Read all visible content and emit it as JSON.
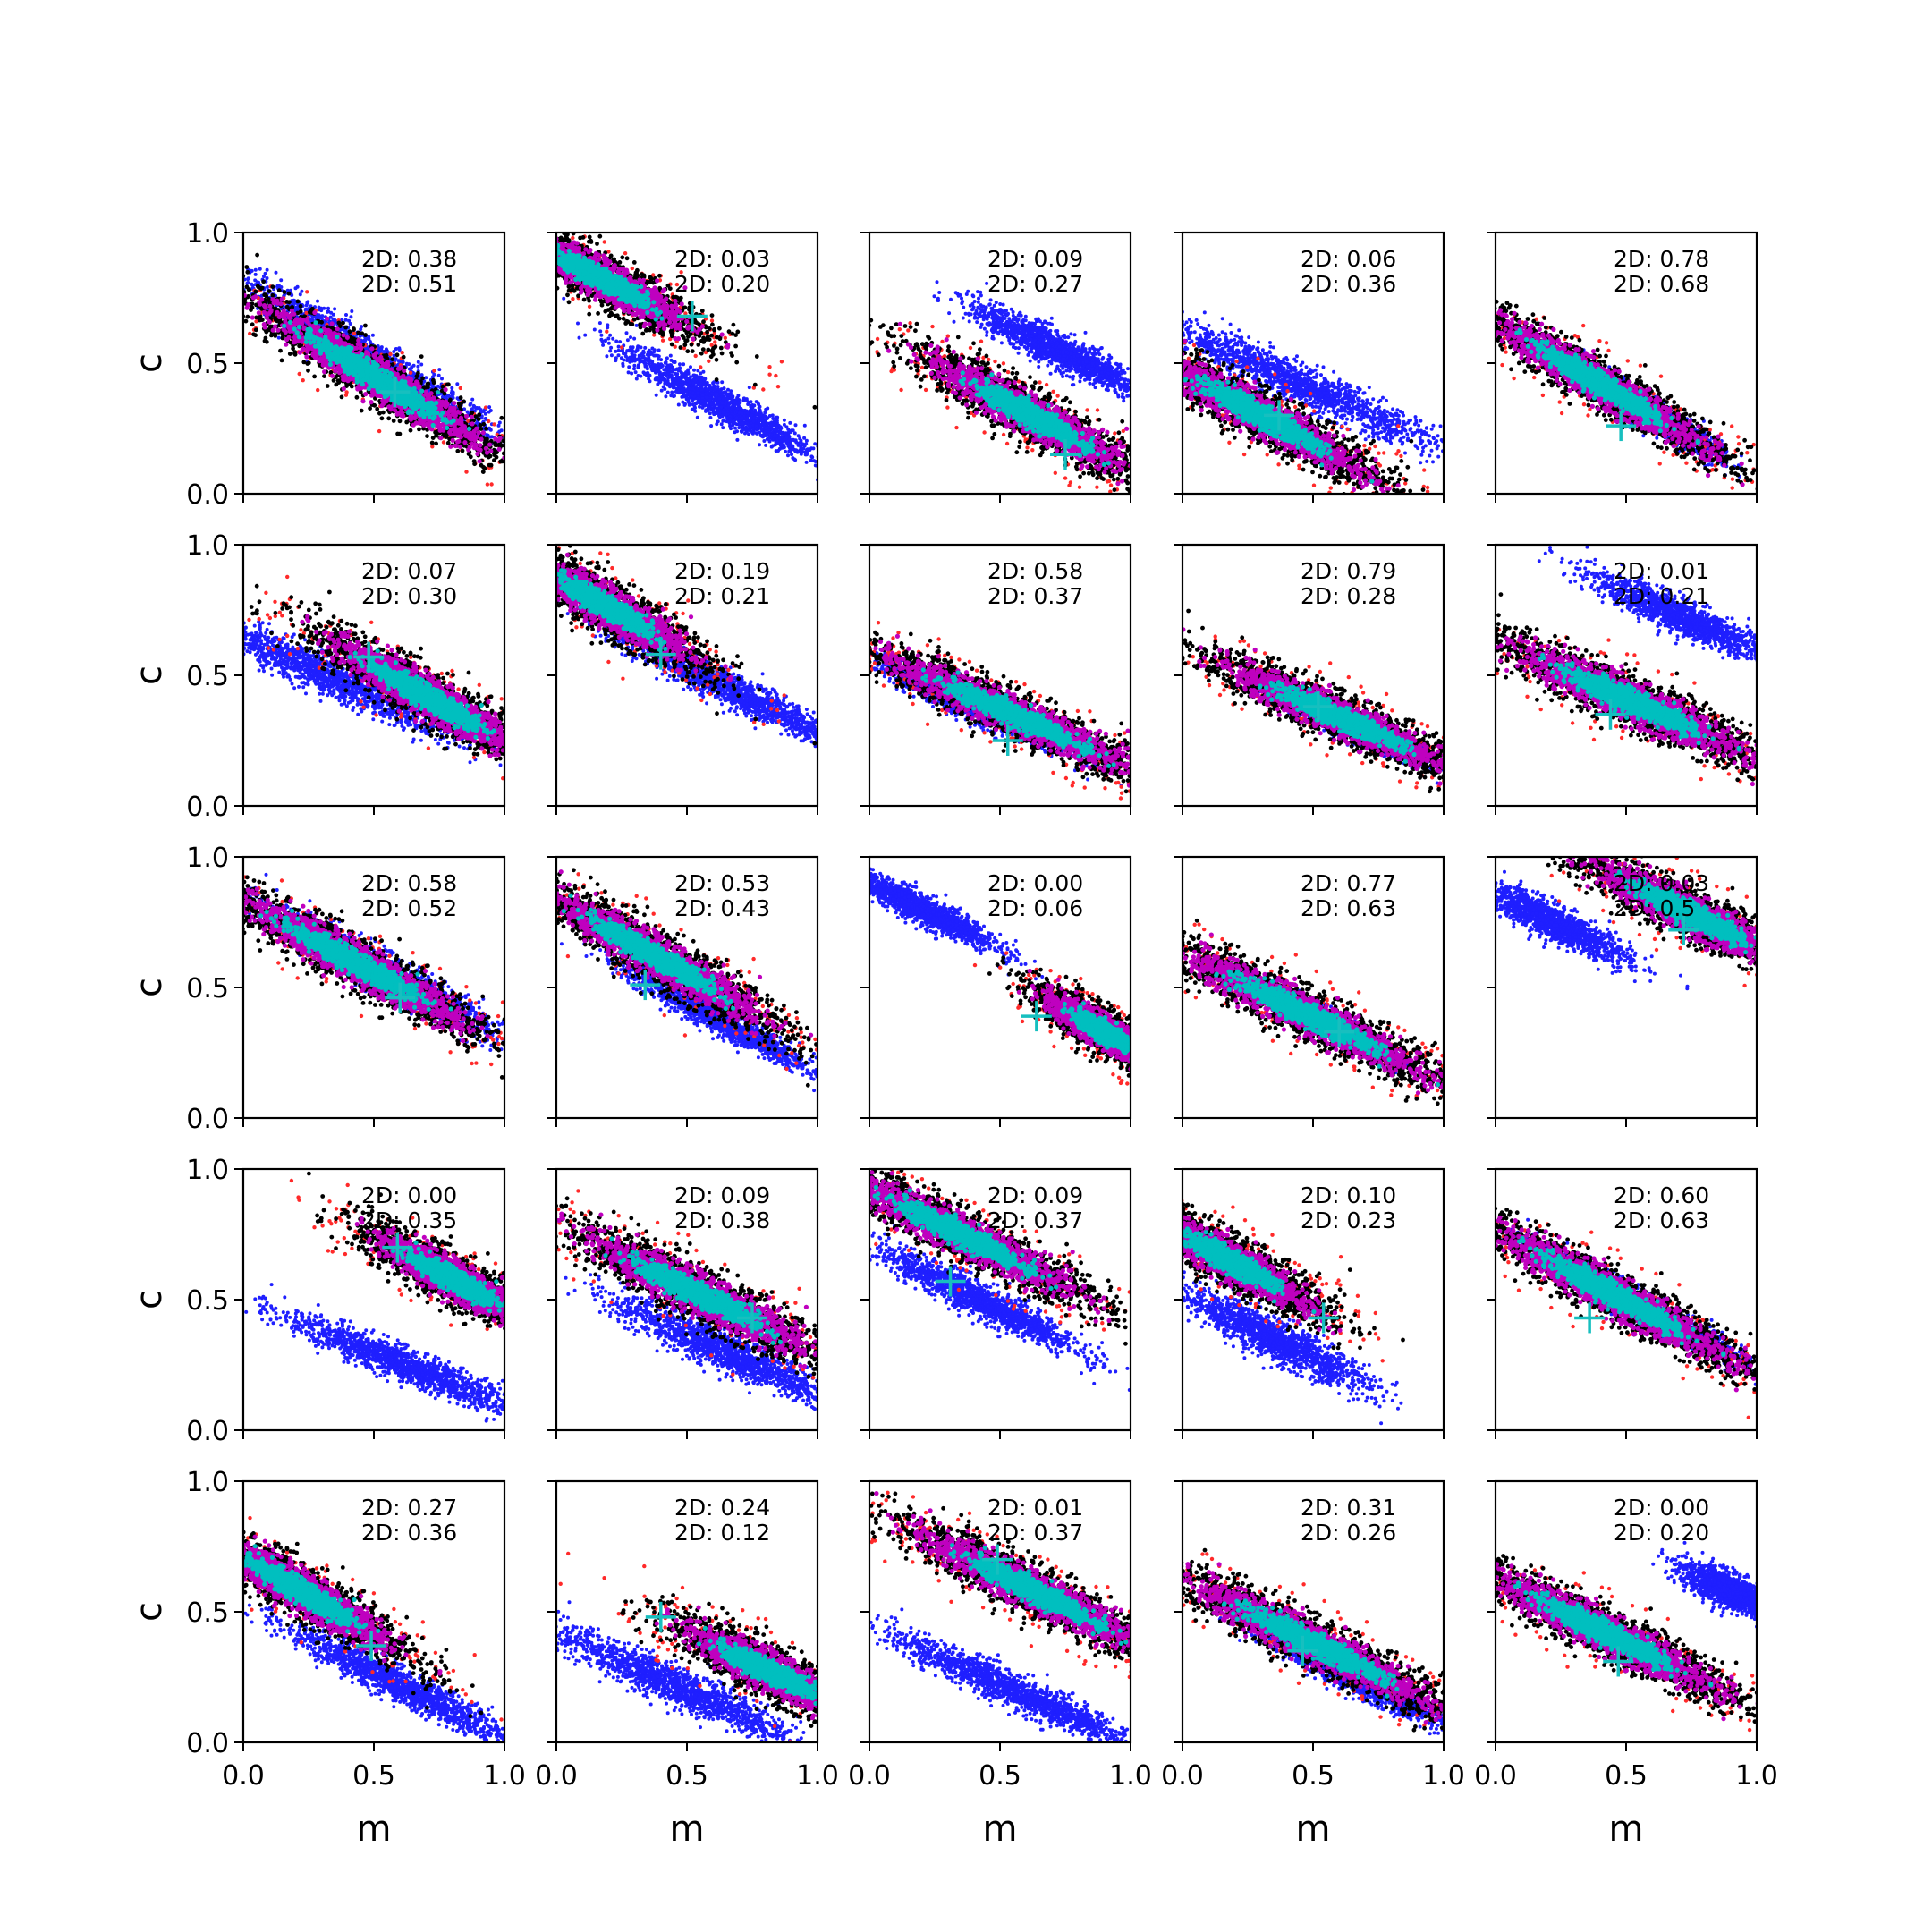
{
  "chart_data": {
    "type": "scatter",
    "grid": {
      "rows": 5,
      "cols": 5
    },
    "xlabel": "m",
    "ylabel": "c",
    "xlim": [
      0.0,
      1.0
    ],
    "ylim": [
      0.0,
      1.0
    ],
    "x_ticks": [
      "0.0",
      "0.5",
      "1.0"
    ],
    "y_ticks": [
      "0.0",
      "0.5",
      "1.0"
    ],
    "grid_lines": false,
    "colors": {
      "blue": "#1f1fff",
      "red": "#ff2a2a",
      "black": "#000000",
      "magenta": "#bf00bf",
      "cyan": "#00bfbf",
      "marker": "#17bfbf"
    },
    "series_legend": "none",
    "panels": [
      {
        "a1": "2D: 0.38",
        "a2": "2D: 0.51",
        "blue": {
          "cx": 0.47,
          "cy": 0.53,
          "slope": -0.62,
          "len": 0.62,
          "wid": 0.07
        },
        "main": {
          "cx": 0.5,
          "cy": 0.45,
          "slope": -0.62,
          "len": 0.6,
          "wid": 0.085
        },
        "marker": [
          0.58,
          0.39
        ]
      },
      {
        "a1": "2D: 0.03",
        "a2": "2D: 0.20",
        "blue": {
          "cx": 0.62,
          "cy": 0.35,
          "slope": -0.55,
          "len": 0.42,
          "wid": 0.06
        },
        "main": {
          "cx": 0.18,
          "cy": 0.82,
          "slope": -0.55,
          "len": 0.42,
          "wid": 0.08
        },
        "marker": [
          0.52,
          0.68
        ]
      },
      {
        "a1": "2D: 0.09",
        "a2": "2D: 0.27",
        "blue": {
          "cx": 0.72,
          "cy": 0.55,
          "slope": -0.5,
          "len": 0.36,
          "wid": 0.06
        },
        "main": {
          "cx": 0.62,
          "cy": 0.3,
          "slope": -0.55,
          "len": 0.5,
          "wid": 0.085
        },
        "marker": [
          0.75,
          0.15
        ]
      },
      {
        "a1": "2D: 0.06",
        "a2": "2D: 0.36",
        "blue": {
          "cx": 0.45,
          "cy": 0.42,
          "slope": -0.45,
          "len": 0.6,
          "wid": 0.07
        },
        "main": {
          "cx": 0.3,
          "cy": 0.3,
          "slope": -0.55,
          "len": 0.55,
          "wid": 0.085
        },
        "marker": [
          0.37,
          0.3
        ]
      },
      {
        "a1": "2D: 0.78",
        "a2": "2D: 0.68",
        "blue": {
          "cx": 0.6,
          "cy": 0.3,
          "slope": -0.6,
          "len": 0.3,
          "wid": 0.05
        },
        "main": {
          "cx": 0.4,
          "cy": 0.42,
          "slope": -0.6,
          "len": 0.58,
          "wid": 0.08
        },
        "marker": [
          0.48,
          0.26
        ]
      },
      {
        "a1": "2D: 0.07",
        "a2": "2D: 0.30",
        "blue": {
          "cx": 0.32,
          "cy": 0.5,
          "slope": -0.45,
          "len": 0.55,
          "wid": 0.07
        },
        "main": {
          "cx": 0.7,
          "cy": 0.42,
          "slope": -0.58,
          "len": 0.5,
          "wid": 0.085
        },
        "marker": [
          0.48,
          0.57
        ]
      },
      {
        "a1": "2D: 0.19",
        "a2": "2D: 0.21",
        "blue": {
          "cx": 0.66,
          "cy": 0.45,
          "slope": -0.5,
          "len": 0.5,
          "wid": 0.06
        },
        "main": {
          "cx": 0.2,
          "cy": 0.76,
          "slope": -0.6,
          "len": 0.42,
          "wid": 0.085
        },
        "marker": [
          0.4,
          0.58
        ]
      },
      {
        "a1": "2D: 0.58",
        "a2": "2D: 0.37",
        "blue": {
          "cx": 0.4,
          "cy": 0.38,
          "slope": -0.45,
          "len": 0.4,
          "wid": 0.05
        },
        "main": {
          "cx": 0.55,
          "cy": 0.35,
          "slope": -0.45,
          "len": 0.62,
          "wid": 0.08
        },
        "marker": [
          0.53,
          0.25
        ]
      },
      {
        "a1": "2D: 0.79",
        "a2": "2D: 0.28",
        "blue": {
          "cx": 0.65,
          "cy": 0.3,
          "slope": -0.45,
          "len": 0.3,
          "wid": 0.04
        },
        "main": {
          "cx": 0.6,
          "cy": 0.34,
          "slope": -0.45,
          "len": 0.56,
          "wid": 0.08
        },
        "marker": [
          0.52,
          0.38
        ]
      },
      {
        "a1": "2D: 0.01",
        "a2": "2D: 0.21",
        "blue": {
          "cx": 0.72,
          "cy": 0.72,
          "slope": -0.45,
          "len": 0.38,
          "wid": 0.06
        },
        "main": {
          "cx": 0.52,
          "cy": 0.4,
          "slope": -0.45,
          "len": 0.6,
          "wid": 0.09
        },
        "marker": [
          0.44,
          0.35
        ]
      },
      {
        "a1": "2D: 0.58",
        "a2": "2D: 0.52",
        "blue": {
          "cx": 0.55,
          "cy": 0.55,
          "slope": -0.55,
          "len": 0.5,
          "wid": 0.07
        },
        "main": {
          "cx": 0.42,
          "cy": 0.6,
          "slope": -0.55,
          "len": 0.6,
          "wid": 0.085
        },
        "marker": [
          0.6,
          0.46
        ]
      },
      {
        "a1": "2D: 0.53",
        "a2": "2D: 0.43",
        "blue": {
          "cx": 0.62,
          "cy": 0.38,
          "slope": -0.55,
          "len": 0.4,
          "wid": 0.05
        },
        "main": {
          "cx": 0.38,
          "cy": 0.62,
          "slope": -0.58,
          "len": 0.56,
          "wid": 0.085
        },
        "marker": [
          0.34,
          0.51
        ]
      },
      {
        "a1": "2D: 0.00",
        "a2": "2D: 0.06",
        "blue": {
          "cx": 0.2,
          "cy": 0.8,
          "slope": -0.5,
          "len": 0.32,
          "wid": 0.05
        },
        "main": {
          "cx": 0.9,
          "cy": 0.33,
          "slope": -0.6,
          "len": 0.3,
          "wid": 0.07
        },
        "marker": [
          0.64,
          0.39
        ]
      },
      {
        "a1": "2D: 0.77",
        "a2": "2D: 0.63",
        "blue": {
          "cx": 0.5,
          "cy": 0.4,
          "slope": -0.5,
          "len": 0.3,
          "wid": 0.04
        },
        "main": {
          "cx": 0.47,
          "cy": 0.4,
          "slope": -0.5,
          "len": 0.64,
          "wid": 0.085
        },
        "marker": [
          0.6,
          0.33
        ]
      },
      {
        "a1": "2D: 0.03",
        "a2": "2D: 0.5",
        "blue": {
          "cx": 0.22,
          "cy": 0.75,
          "slope": -0.5,
          "len": 0.32,
          "wid": 0.06
        },
        "main": {
          "cx": 0.75,
          "cy": 0.78,
          "slope": -0.5,
          "len": 0.5,
          "wid": 0.085
        },
        "marker": [
          0.72,
          0.72
        ]
      },
      {
        "a1": "2D: 0.00",
        "a2": "2D: 0.35",
        "blue": {
          "cx": 0.62,
          "cy": 0.25,
          "slope": -0.4,
          "len": 0.5,
          "wid": 0.06
        },
        "main": {
          "cx": 0.8,
          "cy": 0.58,
          "slope": -0.55,
          "len": 0.38,
          "wid": 0.08
        },
        "marker": [
          0.59,
          0.7
        ]
      },
      {
        "a1": "2D: 0.09",
        "a2": "2D: 0.38",
        "blue": {
          "cx": 0.65,
          "cy": 0.3,
          "slope": -0.45,
          "len": 0.46,
          "wid": 0.07
        },
        "main": {
          "cx": 0.55,
          "cy": 0.52,
          "slope": -0.5,
          "len": 0.56,
          "wid": 0.09
        },
        "marker": [
          0.75,
          0.43
        ]
      },
      {
        "a1": "2D: 0.09",
        "a2": "2D: 0.37",
        "blue": {
          "cx": 0.42,
          "cy": 0.5,
          "slope": -0.5,
          "len": 0.42,
          "wid": 0.06
        },
        "main": {
          "cx": 0.35,
          "cy": 0.75,
          "slope": -0.5,
          "len": 0.6,
          "wid": 0.085
        },
        "marker": [
          0.31,
          0.57
        ]
      },
      {
        "a1": "2D: 0.10",
        "a2": "2D: 0.23",
        "blue": {
          "cx": 0.35,
          "cy": 0.35,
          "slope": -0.5,
          "len": 0.4,
          "wid": 0.07
        },
        "main": {
          "cx": 0.18,
          "cy": 0.65,
          "slope": -0.55,
          "len": 0.42,
          "wid": 0.085
        },
        "marker": [
          0.54,
          0.43
        ]
      },
      {
        "a1": "2D: 0.60",
        "a2": "2D: 0.63",
        "blue": {
          "cx": 0.55,
          "cy": 0.48,
          "slope": -0.55,
          "len": 0.45,
          "wid": 0.05
        },
        "main": {
          "cx": 0.45,
          "cy": 0.52,
          "slope": -0.55,
          "len": 0.64,
          "wid": 0.085
        },
        "marker": [
          0.36,
          0.43
        ]
      },
      {
        "a1": "2D: 0.27",
        "a2": "2D: 0.36",
        "blue": {
          "cx": 0.6,
          "cy": 0.22,
          "slope": -0.5,
          "len": 0.48,
          "wid": 0.06
        },
        "main": {
          "cx": 0.22,
          "cy": 0.58,
          "slope": -0.6,
          "len": 0.48,
          "wid": 0.085
        },
        "marker": [
          0.49,
          0.37
        ]
      },
      {
        "a1": "2D: 0.24",
        "a2": "2D: 0.12",
        "blue": {
          "cx": 0.45,
          "cy": 0.22,
          "slope": -0.45,
          "len": 0.5,
          "wid": 0.07
        },
        "main": {
          "cx": 0.82,
          "cy": 0.27,
          "slope": -0.5,
          "len": 0.42,
          "wid": 0.085
        },
        "marker": [
          0.4,
          0.48
        ]
      },
      {
        "a1": "2D: 0.01",
        "a2": "2D: 0.37",
        "blue": {
          "cx": 0.55,
          "cy": 0.2,
          "slope": -0.45,
          "len": 0.52,
          "wid": 0.06
        },
        "main": {
          "cx": 0.63,
          "cy": 0.58,
          "slope": -0.5,
          "len": 0.58,
          "wid": 0.085
        },
        "marker": [
          0.49,
          0.7
        ]
      },
      {
        "a1": "2D: 0.31",
        "a2": "2D: 0.26",
        "blue": {
          "cx": 0.65,
          "cy": 0.25,
          "slope": -0.5,
          "len": 0.4,
          "wid": 0.05
        },
        "main": {
          "cx": 0.5,
          "cy": 0.38,
          "slope": -0.5,
          "len": 0.64,
          "wid": 0.085
        },
        "marker": [
          0.46,
          0.35
        ]
      },
      {
        "a1": "2D: 0.00",
        "a2": "2D: 0.20",
        "blue": {
          "cx": 0.9,
          "cy": 0.58,
          "slope": -0.45,
          "len": 0.2,
          "wid": 0.06
        },
        "main": {
          "cx": 0.42,
          "cy": 0.42,
          "slope": -0.5,
          "len": 0.6,
          "wid": 0.085
        },
        "marker": [
          0.47,
          0.31
        ]
      }
    ]
  }
}
